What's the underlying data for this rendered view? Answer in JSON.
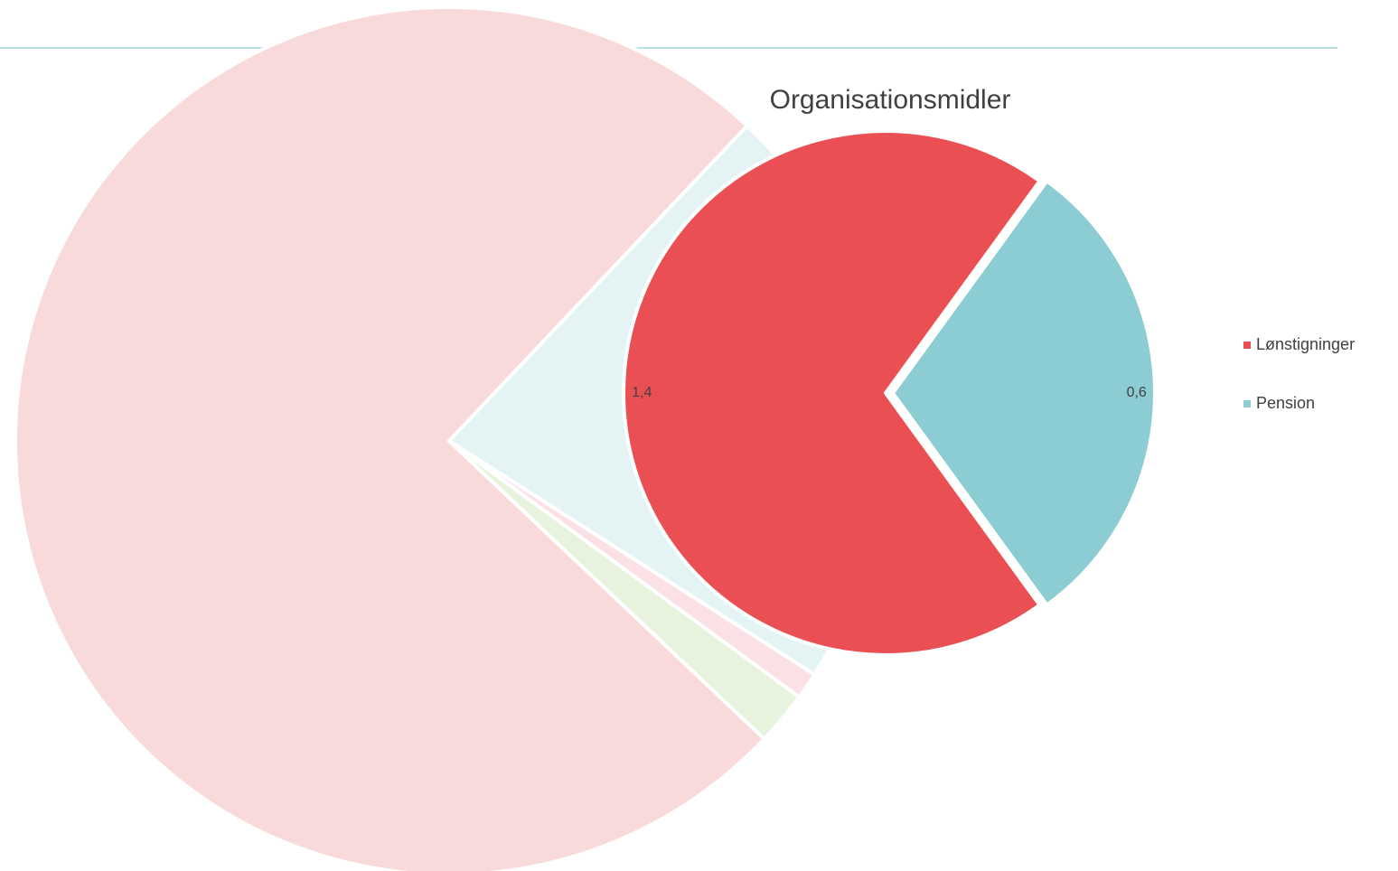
{
  "chart_data": [
    {
      "type": "pie",
      "categories": [
        null,
        null,
        null,
        null
      ],
      "values": [
        75,
        22,
        1,
        2
      ],
      "colors": [
        "#f9dadb",
        "#e4f4f5",
        "#fbe0e6",
        "#e8f3de"
      ]
    },
    {
      "type": "pie",
      "title": "Organisationsmidler",
      "categories": [
        "Lønstigninger",
        "Pension"
      ],
      "values": [
        1.4,
        0.6
      ],
      "value_labels": [
        "1,4",
        "0,6"
      ],
      "colors": [
        "#ea5053",
        "#8bcdd3"
      ],
      "legend": "right"
    }
  ]
}
